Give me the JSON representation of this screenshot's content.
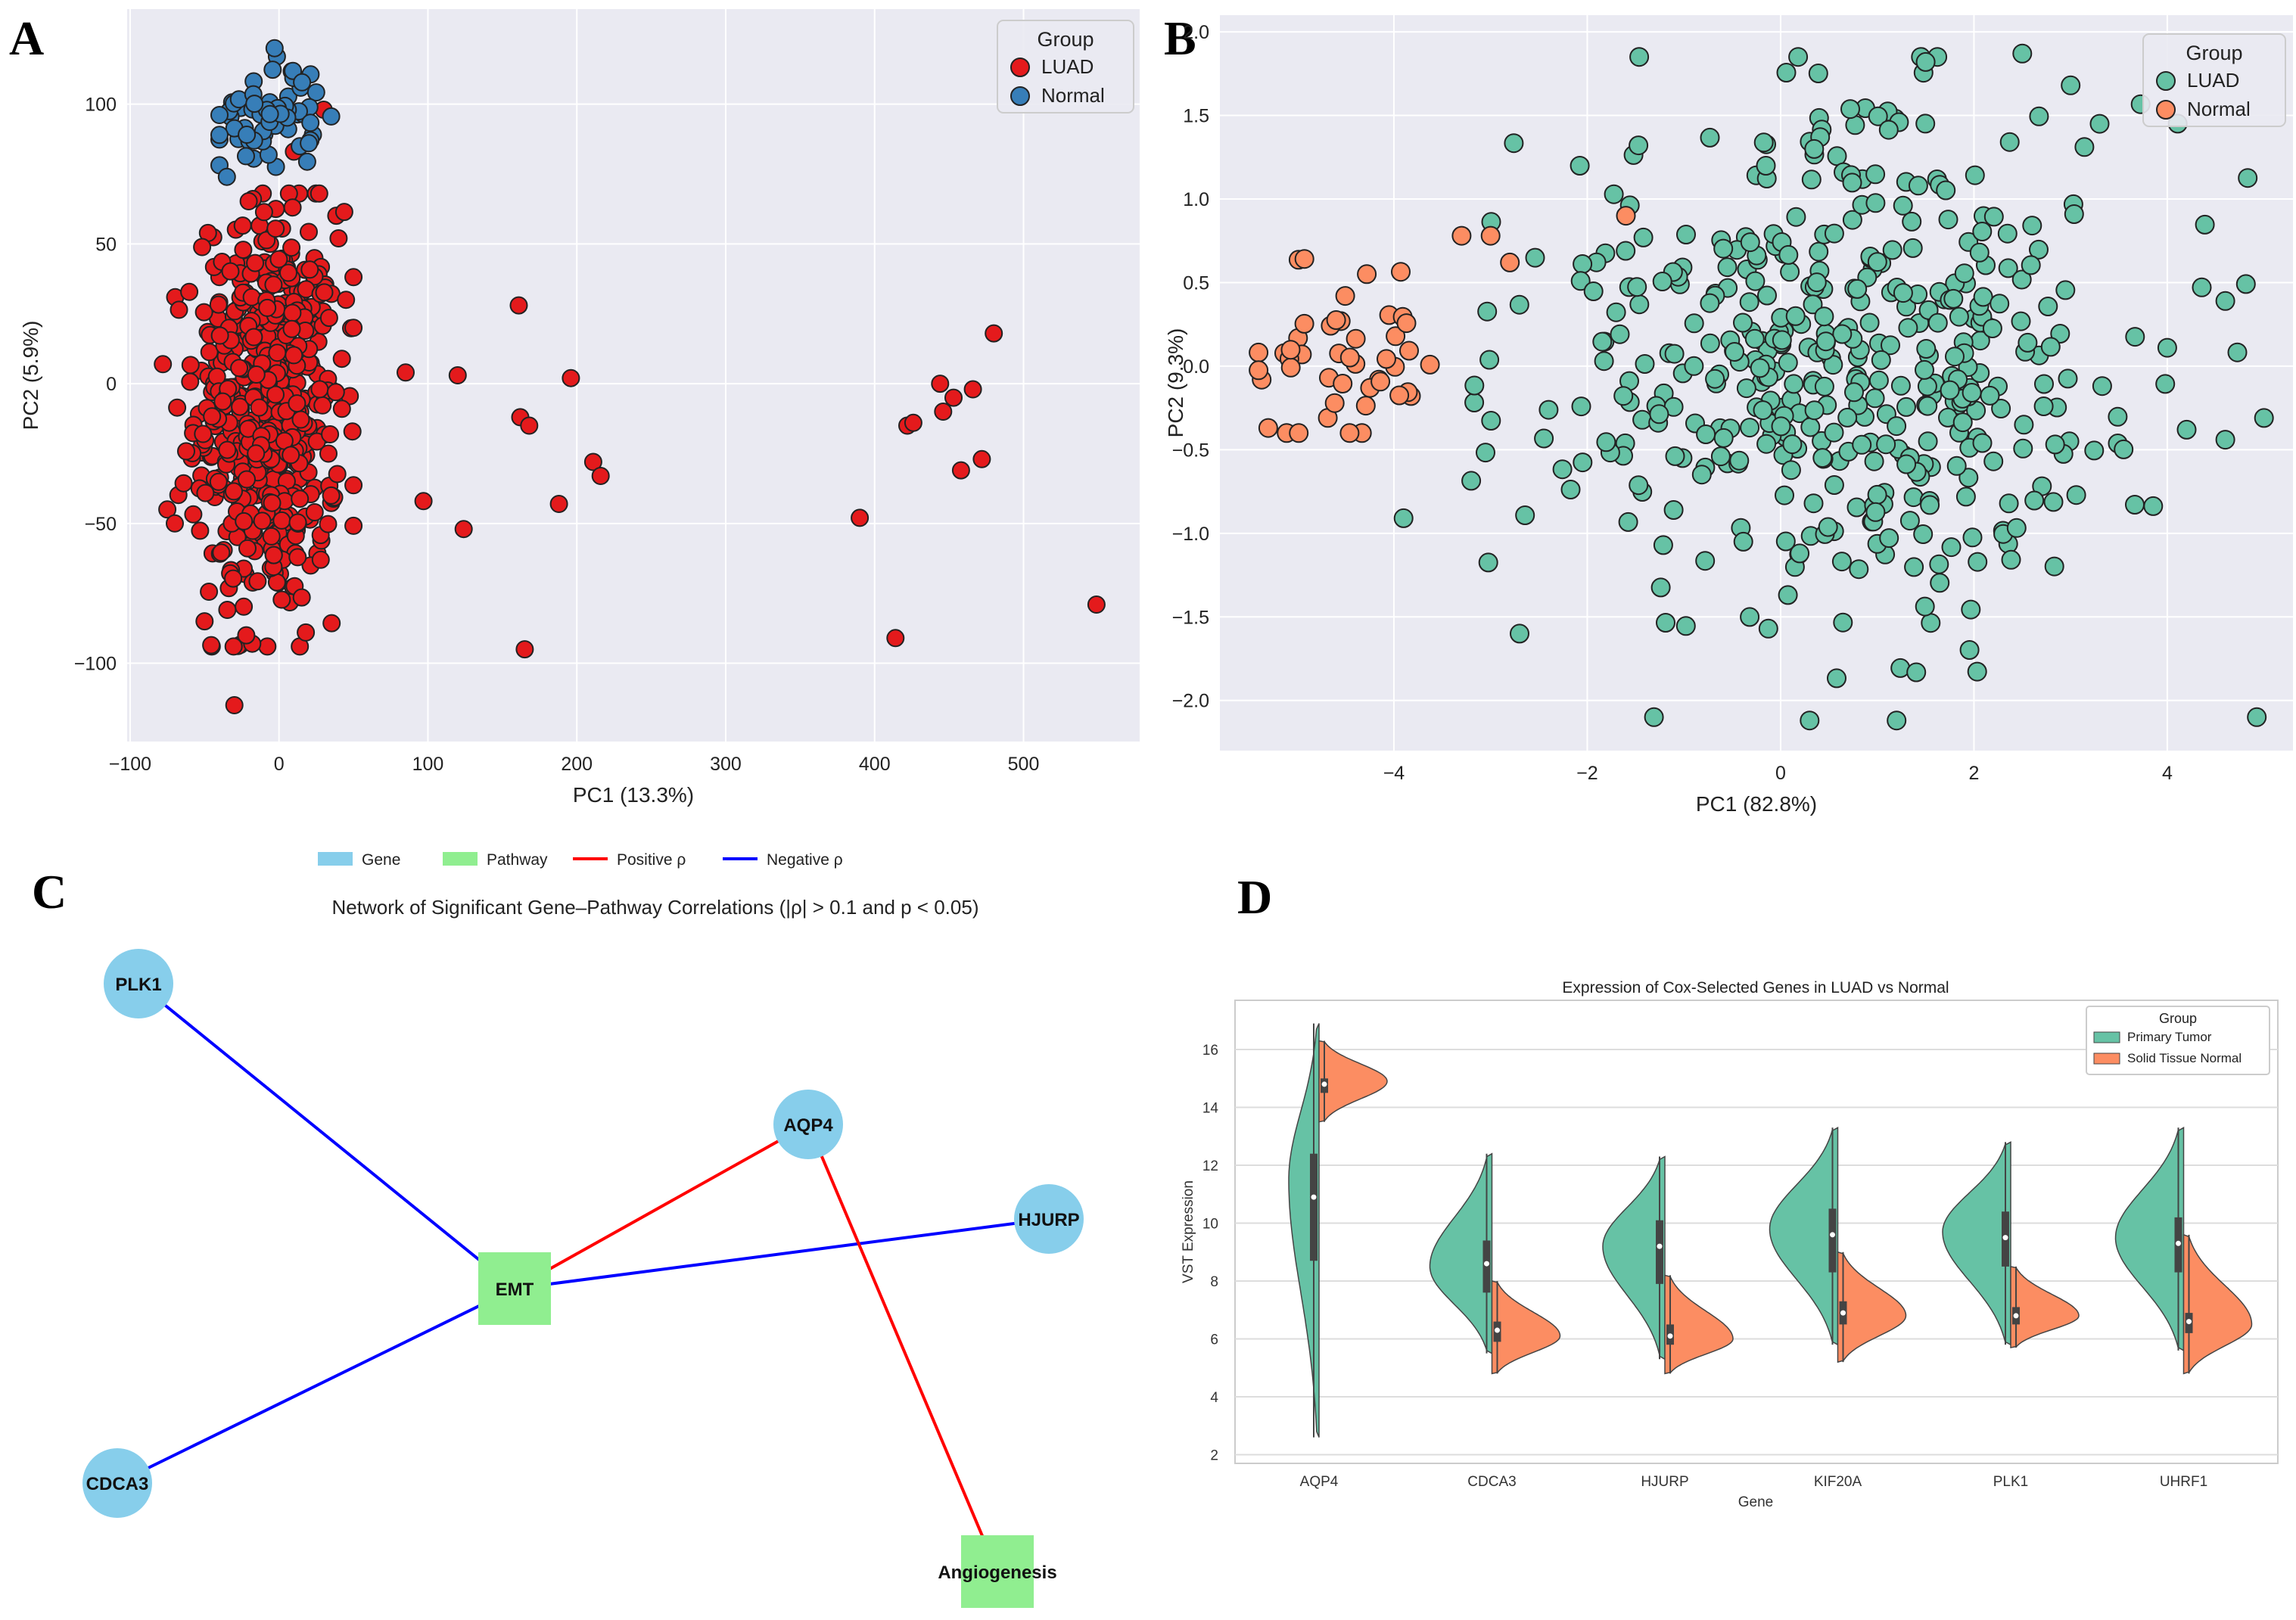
{
  "figure": {
    "panel_letters": [
      "A",
      "B",
      "C",
      "D"
    ]
  },
  "chart_data": [
    {
      "id": "A",
      "type": "scatter",
      "xlabel": "PC1 (13.3%)",
      "ylabel": "PC2 (5.9%)",
      "xlim": [
        -102,
        578
      ],
      "ylim": [
        -128,
        134
      ],
      "xticks": [
        -100,
        0,
        100,
        200,
        300,
        400,
        500
      ],
      "yticks": [
        -100,
        -50,
        0,
        50,
        100
      ],
      "xtick_labels": [
        "−100",
        "0",
        "100",
        "200",
        "300",
        "400",
        "500"
      ],
      "ytick_labels": [
        "−100",
        "−50",
        "0",
        "50",
        "100"
      ],
      "grid": true,
      "legend": {
        "title": "Group",
        "position": "top-right",
        "entries": [
          "LUAD",
          "Normal"
        ]
      },
      "colors": {
        "LUAD": "#e41a1c",
        "Normal": "#377eb8",
        "background": "#eaeaf2"
      },
      "series": [
        {
          "name": "LUAD",
          "generated_cluster": {
            "count": 560,
            "x_mean": -8,
            "x_sd": 24,
            "x_range": [
              -78,
              50
            ],
            "y_mean": -10,
            "y_sd": 36,
            "y_range": [
              -94,
              68
            ]
          },
          "points": [
            [
              -30,
              -115
            ],
            [
              -18,
              -93
            ],
            [
              -22,
              -90
            ],
            [
              18,
              -89
            ],
            [
              -50,
              -85
            ],
            [
              -75,
              -45
            ],
            [
              -70,
              -50
            ],
            [
              28,
              -63
            ],
            [
              35,
              -40
            ],
            [
              50,
              20
            ],
            [
              45,
              30
            ],
            [
              40,
              52
            ],
            [
              30,
              98
            ],
            [
              10,
              83
            ],
            [
              85,
              4
            ],
            [
              97,
              -42
            ],
            [
              120,
              3
            ],
            [
              124,
              -52
            ],
            [
              161,
              28
            ],
            [
              162,
              -12
            ],
            [
              168,
              -15
            ],
            [
              165,
              -95
            ],
            [
              188,
              -43
            ],
            [
              196,
              2
            ],
            [
              211,
              -28
            ],
            [
              216,
              -33
            ],
            [
              390,
              -48
            ],
            [
              414,
              -91
            ],
            [
              422,
              -15
            ],
            [
              426,
              -14
            ],
            [
              444,
              0
            ],
            [
              446,
              -10
            ],
            [
              453,
              -5
            ],
            [
              458,
              -31
            ],
            [
              466,
              -2
            ],
            [
              472,
              -27
            ],
            [
              480,
              18
            ],
            [
              549,
              -79
            ]
          ]
        },
        {
          "name": "Normal",
          "generated_cluster": {
            "count": 60,
            "x_mean": -5,
            "x_sd": 18,
            "x_range": [
              -40,
              35
            ],
            "y_mean": 97,
            "y_sd": 10,
            "y_range": [
              74,
              120
            ]
          },
          "points": [
            [
              -3,
              120
            ],
            [
              -40,
              89
            ],
            [
              -35,
              74
            ],
            [
              20,
              86
            ]
          ]
        }
      ]
    },
    {
      "id": "B",
      "type": "scatter",
      "xlabel": "PC1 (82.8%)",
      "ylabel": "PC2 (9.3%)",
      "xlim": [
        -5.8,
        5.3
      ],
      "ylim": [
        -2.3,
        2.1
      ],
      "xticks": [
        -4,
        -2,
        0,
        2,
        4
      ],
      "yticks": [
        -2.0,
        -1.5,
        -1.0,
        -0.5,
        0.0,
        0.5,
        1.0,
        1.5,
        2.0
      ],
      "xtick_labels": [
        "−4",
        "−2",
        "0",
        "2",
        "4"
      ],
      "ytick_labels": [
        "−2.0",
        "−1.5",
        "−1.0",
        "−0.5",
        "0.0",
        "0.5",
        "1.0",
        "1.5",
        "2.0"
      ],
      "grid": true,
      "legend": {
        "title": "Group",
        "position": "top-right",
        "entries": [
          "LUAD",
          "Normal"
        ]
      },
      "colors": {
        "LUAD": "#66c2a5",
        "Normal": "#fc8d62",
        "background": "#eaeaf2"
      },
      "series": [
        {
          "name": "LUAD",
          "generated_cluster": {
            "count": 460,
            "x_mean": 0.6,
            "x_sd": 1.6,
            "x_range": [
              -3.2,
              5.0
            ],
            "y_mean": 0.0,
            "y_sd": 0.75,
            "y_range": [
              -2.1,
              1.85
            ]
          },
          "points": [
            [
              2.5,
              1.87
            ],
            [
              1.5,
              1.82
            ],
            [
              4.6,
              0.39
            ],
            [
              5.0,
              -0.31
            ],
            [
              4.6,
              -0.44
            ],
            [
              -3.9,
              -0.91
            ],
            [
              -2.7,
              -1.6
            ],
            [
              0.3,
              -2.12
            ],
            [
              1.2,
              -2.12
            ],
            [
              3.3,
              1.45
            ],
            [
              3.0,
              1.68
            ],
            [
              4.0,
              0.11
            ],
            [
              4.2,
              -0.38
            ]
          ]
        },
        {
          "name": "Normal",
          "generated_cluster": {
            "count": 45,
            "x_mean": -4.4,
            "x_sd": 0.5,
            "x_range": [
              -5.4,
              -3.0
            ],
            "y_mean": 0.05,
            "y_sd": 0.3,
            "y_range": [
              -0.4,
              0.78
            ]
          },
          "points": [
            [
              -5.3,
              -0.37
            ],
            [
              -3.3,
              0.78
            ],
            [
              -3.0,
              0.78
            ],
            [
              -2.8,
              0.62
            ],
            [
              -1.6,
              0.9
            ]
          ]
        }
      ]
    },
    {
      "id": "C",
      "type": "network",
      "title": "Network of Significant Gene–Pathway Correlations (|ρ| > 0.1 and p < 0.05)",
      "legend": {
        "position": "top-center",
        "entries": [
          {
            "label": "Gene",
            "kind": "patch",
            "color": "#87ceeb"
          },
          {
            "label": "Pathway",
            "kind": "patch",
            "color": "#90ee90"
          },
          {
            "label": "Positive ρ",
            "kind": "line",
            "color": "#ff0000"
          },
          {
            "label": "Negative ρ",
            "kind": "line",
            "color": "#0000ff"
          }
        ]
      },
      "nodes": [
        {
          "id": "PLK1",
          "type": "gene"
        },
        {
          "id": "CDCA3",
          "type": "gene"
        },
        {
          "id": "AQP4",
          "type": "gene"
        },
        {
          "id": "HJURP",
          "type": "gene"
        },
        {
          "id": "EMT",
          "type": "pathway"
        },
        {
          "id": "Angiogenesis",
          "type": "pathway"
        }
      ],
      "edges": [
        {
          "source": "PLK1",
          "target": "EMT",
          "sign": "negative"
        },
        {
          "source": "CDCA3",
          "target": "EMT",
          "sign": "negative"
        },
        {
          "source": "HJURP",
          "target": "EMT",
          "sign": "negative"
        },
        {
          "source": "AQP4",
          "target": "EMT",
          "sign": "positive"
        },
        {
          "source": "AQP4",
          "target": "Angiogenesis",
          "sign": "positive"
        }
      ]
    },
    {
      "id": "D",
      "type": "violin",
      "title": "Expression of Cox-Selected Genes in LUAD vs Normal",
      "xlabel": "Gene",
      "ylabel": "VST Expression",
      "ylim": [
        1.7,
        17.7
      ],
      "yticks": [
        2,
        4,
        6,
        8,
        10,
        12,
        14,
        16
      ],
      "grid": true,
      "categories": [
        "AQP4",
        "CDCA3",
        "HJURP",
        "KIF20A",
        "PLK1",
        "UHRF1"
      ],
      "legend": {
        "title": "Group",
        "position": "top-right",
        "entries": [
          "Primary Tumor",
          "Solid Tissue Normal"
        ]
      },
      "colors": {
        "Primary Tumor": "#66c2a5",
        "Solid Tissue Normal": "#fc8d62"
      },
      "series": [
        {
          "name": "Primary Tumor",
          "values": [
            {
              "min": 2.6,
              "max": 16.9,
              "mode": 11.5,
              "q1": 8.7,
              "median": 10.9,
              "q3": 12.4,
              "width": 0.4
            },
            {
              "min": 5.5,
              "max": 12.4,
              "mode": 8.5,
              "q1": 7.6,
              "median": 8.6,
              "q3": 9.4,
              "width": 0.82
            },
            {
              "min": 5.3,
              "max": 12.3,
              "mode": 9.2,
              "q1": 7.9,
              "median": 9.2,
              "q3": 10.1,
              "width": 0.82
            },
            {
              "min": 5.8,
              "max": 13.3,
              "mode": 9.8,
              "q1": 8.3,
              "median": 9.6,
              "q3": 10.5,
              "width": 0.9
            },
            {
              "min": 5.8,
              "max": 12.8,
              "mode": 9.7,
              "q1": 8.5,
              "median": 9.5,
              "q3": 10.4,
              "width": 0.9
            },
            {
              "min": 5.6,
              "max": 13.3,
              "mode": 9.5,
              "q1": 8.3,
              "median": 9.3,
              "q3": 10.2,
              "width": 0.9
            }
          ]
        },
        {
          "name": "Solid Tissue Normal",
          "values": [
            {
              "min": 13.5,
              "max": 16.3,
              "mode": 14.9,
              "q1": 14.5,
              "median": 14.8,
              "q3": 15.0,
              "width": 0.9
            },
            {
              "min": 4.8,
              "max": 8.0,
              "mode": 6.1,
              "q1": 5.9,
              "median": 6.3,
              "q3": 6.6,
              "width": 0.9
            },
            {
              "min": 4.8,
              "max": 8.2,
              "mode": 6.0,
              "q1": 5.8,
              "median": 6.1,
              "q3": 6.5,
              "width": 0.9
            },
            {
              "min": 5.2,
              "max": 9.0,
              "mode": 6.8,
              "q1": 6.5,
              "median": 6.9,
              "q3": 7.3,
              "width": 0.9
            },
            {
              "min": 5.7,
              "max": 8.5,
              "mode": 6.8,
              "q1": 6.5,
              "median": 6.8,
              "q3": 7.1,
              "width": 0.9
            },
            {
              "min": 4.8,
              "max": 9.6,
              "mode": 6.5,
              "q1": 6.2,
              "median": 6.6,
              "q3": 6.9,
              "width": 0.9
            }
          ]
        }
      ]
    }
  ]
}
